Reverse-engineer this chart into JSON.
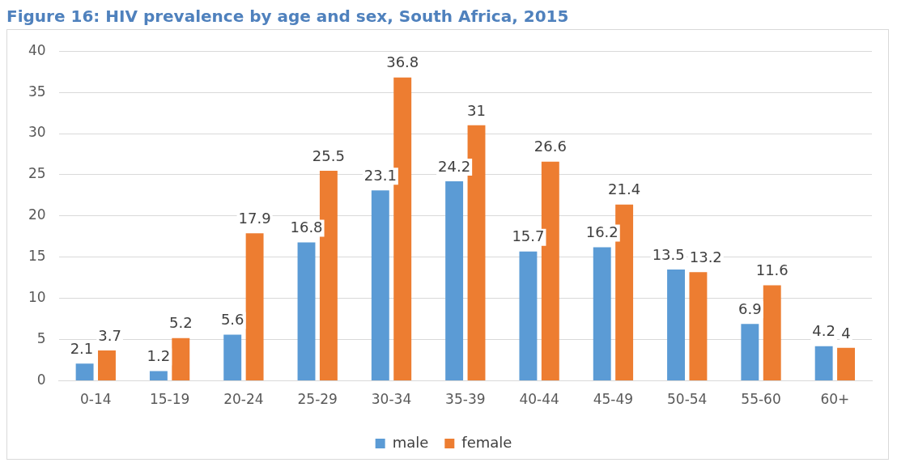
{
  "chart_data": {
    "type": "bar",
    "title": "Figure 16: HIV prevalence by age and sex, South Africa, 2015",
    "categories": [
      "0-14",
      "15-19",
      "20-24",
      "25-29",
      "30-34",
      "35-39",
      "40-44",
      "45-49",
      "50-54",
      "55-60",
      "60+"
    ],
    "series": [
      {
        "name": "male",
        "color": "#5b9bd5",
        "values": [
          2.1,
          1.2,
          5.6,
          16.8,
          23.1,
          24.2,
          15.7,
          16.2,
          13.5,
          6.9,
          4.2
        ]
      },
      {
        "name": "female",
        "color": "#ed7d31",
        "values": [
          3.7,
          5.2,
          17.9,
          25.5,
          36.8,
          31,
          26.6,
          21.4,
          13.2,
          11.6,
          4
        ]
      }
    ],
    "ylim": [
      0,
      40
    ],
    "yticks": [
      0,
      5,
      10,
      15,
      20,
      25,
      30,
      35,
      40
    ],
    "grid": "y",
    "legend": "bottom",
    "data_labels": true
  }
}
